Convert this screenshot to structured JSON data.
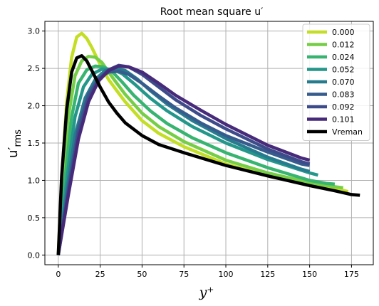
{
  "chart_data": {
    "type": "line",
    "title": "Root mean square u′",
    "xlabel": "y⁺",
    "ylabel": "u′",
    "ylabel_sub": "rms",
    "xlim": [
      -8,
      188
    ],
    "ylim": [
      -0.13,
      3.13
    ],
    "xticks": [
      0,
      25,
      50,
      75,
      100,
      125,
      150,
      175
    ],
    "yticks": [
      0.0,
      0.5,
      1.0,
      1.5,
      2.0,
      2.5,
      3.0
    ],
    "ytick_labels": [
      "0.0",
      "0.5",
      "1.0",
      "1.5",
      "2.0",
      "2.5",
      "3.0"
    ],
    "grid": true,
    "legend_position": "top-right",
    "series": [
      {
        "name": "0.000",
        "color": "#c3de24",
        "width": 4.5,
        "points": [
          [
            0,
            0
          ],
          [
            2,
            1.0
          ],
          [
            5,
            2.05
          ],
          [
            8,
            2.65
          ],
          [
            11,
            2.92
          ],
          [
            14,
            2.97
          ],
          [
            17,
            2.9
          ],
          [
            20,
            2.78
          ],
          [
            25,
            2.55
          ],
          [
            30,
            2.35
          ],
          [
            35,
            2.2
          ],
          [
            40,
            2.05
          ],
          [
            50,
            1.8
          ],
          [
            60,
            1.63
          ],
          [
            75,
            1.45
          ],
          [
            100,
            1.22
          ],
          [
            125,
            1.06
          ],
          [
            150,
            0.94
          ],
          [
            165,
            0.89
          ],
          [
            173,
            0.85
          ]
        ]
      },
      {
        "name": "0.012",
        "color": "#76ce47",
        "width": 4.5,
        "points": [
          [
            0,
            0
          ],
          [
            3,
            0.95
          ],
          [
            6,
            1.85
          ],
          [
            10,
            2.4
          ],
          [
            14,
            2.6
          ],
          [
            18,
            2.66
          ],
          [
            22,
            2.65
          ],
          [
            26,
            2.58
          ],
          [
            30,
            2.45
          ],
          [
            35,
            2.3
          ],
          [
            40,
            2.15
          ],
          [
            50,
            1.9
          ],
          [
            60,
            1.72
          ],
          [
            75,
            1.52
          ],
          [
            100,
            1.27
          ],
          [
            125,
            1.1
          ],
          [
            150,
            0.97
          ],
          [
            163,
            0.92
          ],
          [
            170,
            0.9
          ]
        ]
      },
      {
        "name": "0.024",
        "color": "#36b470",
        "width": 4.5,
        "points": [
          [
            0,
            0
          ],
          [
            4,
            1.0
          ],
          [
            8,
            1.85
          ],
          [
            12,
            2.3
          ],
          [
            17,
            2.48
          ],
          [
            22,
            2.53
          ],
          [
            27,
            2.52
          ],
          [
            32,
            2.46
          ],
          [
            38,
            2.32
          ],
          [
            45,
            2.14
          ],
          [
            55,
            1.93
          ],
          [
            65,
            1.76
          ],
          [
            80,
            1.57
          ],
          [
            100,
            1.37
          ],
          [
            125,
            1.17
          ],
          [
            150,
            1.0
          ],
          [
            160,
            0.96
          ],
          [
            165,
            0.95
          ]
        ]
      },
      {
        "name": "0.052",
        "color": "#24978b",
        "width": 4.5,
        "points": [
          [
            0,
            0
          ],
          [
            5,
            1.0
          ],
          [
            10,
            1.85
          ],
          [
            15,
            2.25
          ],
          [
            20,
            2.42
          ],
          [
            26,
            2.49
          ],
          [
            32,
            2.49
          ],
          [
            38,
            2.43
          ],
          [
            45,
            2.3
          ],
          [
            55,
            2.1
          ],
          [
            65,
            1.93
          ],
          [
            80,
            1.72
          ],
          [
            100,
            1.5
          ],
          [
            125,
            1.28
          ],
          [
            150,
            1.1
          ],
          [
            155,
            1.07
          ]
        ]
      },
      {
        "name": "0.070",
        "color": "#277b8e",
        "width": 4.5,
        "points": [
          [
            0,
            0
          ],
          [
            5,
            0.85
          ],
          [
            10,
            1.6
          ],
          [
            16,
            2.1
          ],
          [
            22,
            2.35
          ],
          [
            28,
            2.47
          ],
          [
            34,
            2.5
          ],
          [
            40,
            2.47
          ],
          [
            47,
            2.36
          ],
          [
            55,
            2.2
          ],
          [
            65,
            2.02
          ],
          [
            80,
            1.8
          ],
          [
            100,
            1.56
          ],
          [
            125,
            1.31
          ],
          [
            145,
            1.15
          ],
          [
            150,
            1.12
          ]
        ]
      },
      {
        "name": "0.083",
        "color": "#365c8d",
        "width": 4.5,
        "points": [
          [
            0,
            0
          ],
          [
            6,
            0.9
          ],
          [
            12,
            1.7
          ],
          [
            18,
            2.15
          ],
          [
            24,
            2.36
          ],
          [
            30,
            2.45
          ],
          [
            36,
            2.46
          ],
          [
            42,
            2.42
          ],
          [
            50,
            2.3
          ],
          [
            60,
            2.13
          ],
          [
            70,
            1.97
          ],
          [
            85,
            1.77
          ],
          [
            100,
            1.6
          ],
          [
            125,
            1.38
          ],
          [
            145,
            1.22
          ],
          [
            150,
            1.2
          ]
        ]
      },
      {
        "name": "0.092",
        "color": "#3d4b8a",
        "width": 4.5,
        "points": [
          [
            0,
            0
          ],
          [
            6,
            0.85
          ],
          [
            12,
            1.62
          ],
          [
            18,
            2.1
          ],
          [
            24,
            2.35
          ],
          [
            30,
            2.48
          ],
          [
            36,
            2.54
          ],
          [
            42,
            2.52
          ],
          [
            50,
            2.42
          ],
          [
            60,
            2.25
          ],
          [
            70,
            2.08
          ],
          [
            85,
            1.87
          ],
          [
            100,
            1.69
          ],
          [
            125,
            1.42
          ],
          [
            145,
            1.25
          ],
          [
            150,
            1.22
          ]
        ]
      },
      {
        "name": "0.101",
        "color": "#472a7a",
        "width": 4.5,
        "points": [
          [
            0,
            0
          ],
          [
            6,
            0.8
          ],
          [
            12,
            1.55
          ],
          [
            18,
            2.05
          ],
          [
            24,
            2.33
          ],
          [
            30,
            2.47
          ],
          [
            36,
            2.53
          ],
          [
            42,
            2.52
          ],
          [
            50,
            2.45
          ],
          [
            60,
            2.3
          ],
          [
            70,
            2.14
          ],
          [
            85,
            1.94
          ],
          [
            100,
            1.75
          ],
          [
            125,
            1.47
          ],
          [
            145,
            1.3
          ],
          [
            150,
            1.27
          ]
        ]
      },
      {
        "name": "Vreman",
        "color": "#000000",
        "width": 4.5,
        "points": [
          [
            0,
            0
          ],
          [
            2,
            1.05
          ],
          [
            5,
            1.95
          ],
          [
            8,
            2.45
          ],
          [
            11,
            2.64
          ],
          [
            14,
            2.67
          ],
          [
            17,
            2.6
          ],
          [
            20,
            2.47
          ],
          [
            25,
            2.25
          ],
          [
            30,
            2.05
          ],
          [
            35,
            1.9
          ],
          [
            40,
            1.77
          ],
          [
            50,
            1.6
          ],
          [
            60,
            1.48
          ],
          [
            75,
            1.37
          ],
          [
            100,
            1.2
          ],
          [
            125,
            1.06
          ],
          [
            150,
            0.93
          ],
          [
            165,
            0.86
          ],
          [
            175,
            0.81
          ],
          [
            180,
            0.8
          ]
        ]
      }
    ]
  }
}
